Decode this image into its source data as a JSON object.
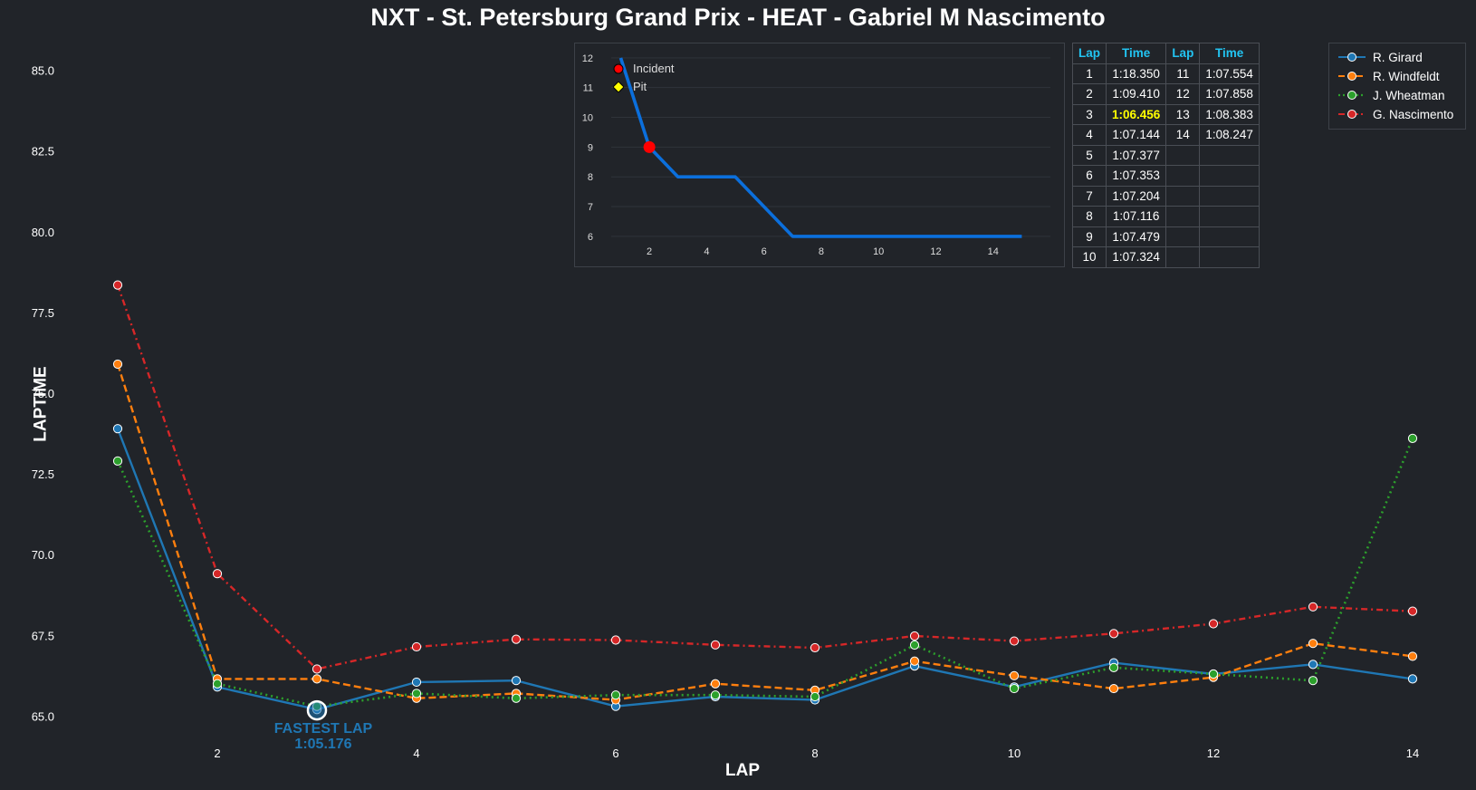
{
  "title": "NXT - St. Petersburg Grand Prix - HEAT - Gabriel M Nascimento",
  "chart_data": [
    {
      "type": "line",
      "xlabel": "LAP",
      "ylabel": "LAPTIME",
      "xlim": [
        0.2,
        14.5
      ],
      "ylim": [
        64.0,
        86.0
      ],
      "xticks": [
        2,
        4,
        6,
        8,
        10,
        12,
        14
      ],
      "yticks": [
        65.0,
        67.5,
        70.0,
        72.5,
        75.0,
        77.5,
        80.0,
        82.5,
        85.0
      ],
      "legend_position": "top-right",
      "series": [
        {
          "name": "R. Girard",
          "color": "#1f77b4",
          "style": "solid",
          "x": [
            1,
            2,
            3,
            4,
            5,
            6,
            7,
            8,
            9,
            10,
            11,
            12,
            13,
            14
          ],
          "y": [
            73.9,
            65.9,
            65.2,
            66.05,
            66.1,
            65.3,
            65.6,
            65.5,
            66.55,
            65.9,
            66.65,
            66.3,
            66.6,
            66.15
          ]
        },
        {
          "name": "R. Windfeldt",
          "color": "#ff7f0e",
          "style": "dashed",
          "x": [
            1,
            2,
            3,
            4,
            5,
            6,
            7,
            8,
            9,
            10,
            11,
            12,
            13,
            14
          ],
          "y": [
            75.9,
            66.15,
            66.15,
            65.55,
            65.7,
            65.5,
            66.0,
            65.8,
            66.7,
            66.25,
            65.85,
            66.2,
            67.25,
            66.85
          ]
        },
        {
          "name": "J. Wheatman",
          "color": "#2ca02c",
          "style": "dotted",
          "x": [
            1,
            2,
            3,
            4,
            5,
            6,
            7,
            8,
            9,
            10,
            11,
            12,
            13,
            14
          ],
          "y": [
            72.9,
            66.0,
            65.3,
            65.7,
            65.55,
            65.65,
            65.65,
            65.6,
            67.2,
            65.85,
            66.5,
            66.3,
            66.1,
            73.6
          ]
        },
        {
          "name": "G. Nascimento",
          "color": "#d62728",
          "style": "dashdot",
          "x": [
            1,
            2,
            3,
            4,
            5,
            6,
            7,
            8,
            9,
            10,
            11,
            12,
            13,
            14
          ],
          "y": [
            78.35,
            69.41,
            66.456,
            67.144,
            67.377,
            67.353,
            67.204,
            67.116,
            67.479,
            67.324,
            67.554,
            67.858,
            68.383,
            68.247
          ]
        }
      ],
      "annotation": {
        "line1": "FASTEST LAP",
        "line2": "1:05.176",
        "x": 3,
        "y": 65.176
      }
    },
    {
      "type": "line",
      "xlim": [
        0.1,
        16.0
      ],
      "ylim": [
        12.3,
        5.6
      ],
      "xticks": [
        2,
        4,
        6,
        8,
        10,
        12,
        14
      ],
      "yticks": [
        6,
        7,
        8,
        9,
        10,
        11,
        12
      ],
      "series": [
        {
          "name": "position",
          "color": "#0b6fdc",
          "x": [
            1,
            2,
            3,
            4,
            5,
            6,
            7,
            8,
            9,
            10,
            11,
            12,
            13,
            14,
            15
          ],
          "y": [
            12,
            9,
            8,
            8,
            8,
            7,
            6,
            6,
            6,
            6,
            6,
            6,
            6,
            6,
            6
          ]
        }
      ],
      "markers": [
        {
          "kind": "incident",
          "x": 2,
          "y": 9
        }
      ],
      "legend": [
        {
          "label": "Incident",
          "color": "#ff0000",
          "shape": "circle"
        },
        {
          "label": "Pit",
          "color": "#ffff00",
          "shape": "diamond"
        }
      ]
    }
  ],
  "lap_table": {
    "headers": [
      "Lap",
      "Time",
      "Lap",
      "Time"
    ],
    "rows": [
      [
        "1",
        "1:18.350",
        "11",
        "1:07.554"
      ],
      [
        "2",
        "1:09.410",
        "12",
        "1:07.858"
      ],
      [
        "3",
        "1:06.456",
        "13",
        "1:08.383"
      ],
      [
        "4",
        "1:07.144",
        "14",
        "1:08.247"
      ],
      [
        "5",
        "1:07.377",
        "",
        ""
      ],
      [
        "6",
        "1:07.353",
        "",
        ""
      ],
      [
        "7",
        "1:07.204",
        "",
        ""
      ],
      [
        "8",
        "1:07.116",
        "",
        ""
      ],
      [
        "9",
        "1:07.479",
        "",
        ""
      ],
      [
        "10",
        "1:07.324",
        "",
        ""
      ]
    ],
    "best_cell": [
      2,
      1
    ]
  }
}
